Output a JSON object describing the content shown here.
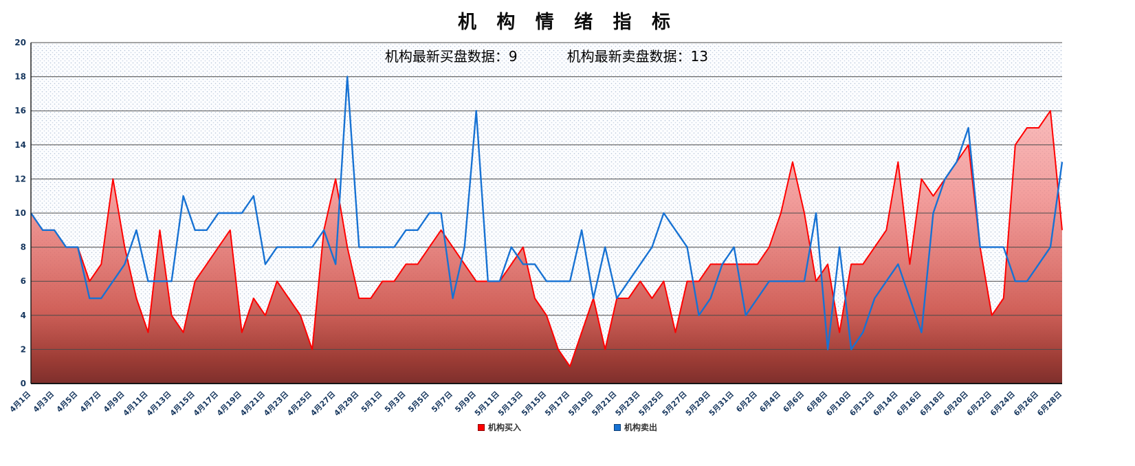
{
  "header": {
    "title": "机 构 情 绪 指 标"
  },
  "subtitle": {
    "buy_text": "机构最新买盘数据：9",
    "sell_text": "机构最新卖盘数据：13"
  },
  "legend": [
    {
      "label": "机构买入",
      "color": "#ff0000"
    },
    {
      "label": "机构卖出",
      "color": "#1772d3"
    }
  ],
  "chart_data": {
    "type": "line",
    "title": "机构情绪指标",
    "ylabel": "",
    "xlabel": "",
    "ylim": [
      0,
      20
    ],
    "y_ticks": [
      0,
      2,
      4,
      6,
      8,
      10,
      12,
      14,
      16,
      18,
      20
    ],
    "grid": "horizontal",
    "legend_position": "bottom",
    "annotations": [
      "机构最新买盘数据：9",
      "机构最新卖盘数据：13"
    ],
    "latest": {
      "buy": 9,
      "sell": 13
    },
    "x_points_per_tick": 2,
    "x_tick_labels": [
      "4月1日",
      "4月3日",
      "4月5日",
      "4月7日",
      "4月9日",
      "4月11日",
      "4月13日",
      "4月15日",
      "4月17日",
      "4月19日",
      "4月21日",
      "4月23日",
      "4月25日",
      "4月27日",
      "4月29日",
      "5月1日",
      "5月3日",
      "5月5日",
      "5月7日",
      "5月9日",
      "5月11日",
      "5月13日",
      "5月15日",
      "5月17日",
      "5月19日",
      "5月21日",
      "5月23日",
      "5月25日",
      "5月27日",
      "5月29日",
      "5月31日",
      "6月2日",
      "6月4日",
      "6月6日",
      "6月8日",
      "6月10日",
      "6月12日",
      "6月14日",
      "6月16日",
      "6月18日",
      "6月20日",
      "6月22日",
      "6月24日",
      "6月26日",
      "6月28日"
    ],
    "series": [
      {
        "name": "机构买入",
        "color": "#ff0000",
        "fill": "red-gradient-area",
        "values": [
          10,
          9,
          9,
          8,
          8,
          6,
          7,
          12,
          8,
          5,
          3,
          9,
          4,
          3,
          6,
          7,
          8,
          9,
          3,
          5,
          4,
          6,
          5,
          4,
          2,
          9,
          12,
          8,
          5,
          5,
          6,
          6,
          7,
          7,
          8,
          9,
          8,
          7,
          6,
          6,
          6,
          7,
          8,
          5,
          4,
          2,
          1,
          3,
          5,
          2,
          5,
          5,
          6,
          5,
          6,
          3,
          6,
          6,
          7,
          7,
          7,
          7,
          7,
          8,
          10,
          13,
          10,
          6,
          7,
          3,
          7,
          7,
          8,
          9,
          13,
          7,
          12,
          11,
          12,
          13,
          14,
          8,
          4,
          5,
          14,
          15,
          15,
          16,
          9
        ]
      },
      {
        "name": "机构卖出",
        "color": "#1772d3",
        "fill": "none",
        "values": [
          10,
          9,
          9,
          8,
          8,
          5,
          5,
          6,
          7,
          9,
          6,
          6,
          6,
          11,
          9,
          9,
          10,
          10,
          10,
          11,
          7,
          8,
          8,
          8,
          8,
          9,
          7,
          18,
          8,
          8,
          8,
          8,
          9,
          9,
          10,
          10,
          5,
          8,
          16,
          6,
          6,
          8,
          7,
          7,
          6,
          6,
          6,
          9,
          5,
          8,
          5,
          6,
          7,
          8,
          10,
          9,
          8,
          4,
          5,
          7,
          8,
          4,
          5,
          6,
          6,
          6,
          6,
          10,
          2,
          8,
          2,
          3,
          5,
          6,
          7,
          5,
          3,
          10,
          12,
          13,
          15,
          8,
          8,
          8,
          6,
          6,
          7,
          8,
          13
        ]
      }
    ]
  }
}
